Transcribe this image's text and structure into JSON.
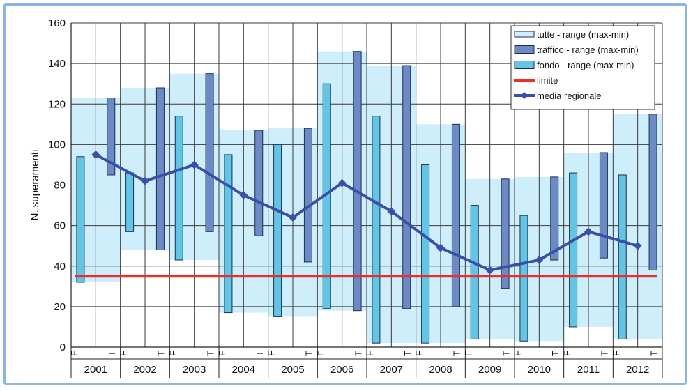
{
  "chart_data": {
    "type": "bar",
    "ylabel": "N. superamenti",
    "ylim": [
      0,
      160
    ],
    "yticks": [
      0,
      20,
      40,
      60,
      80,
      100,
      120,
      140,
      160
    ],
    "grid": true,
    "legend_position": "top-right",
    "categories": [
      "2001",
      "2002",
      "2003",
      "2004",
      "2005",
      "2006",
      "2007",
      "2008",
      "2009",
      "2010",
      "2011",
      "2012"
    ],
    "sublabels": [
      "F",
      "T"
    ],
    "series": [
      {
        "name": "tutte - range (max-min)",
        "color": "#cfeefb",
        "min": [
          32,
          48,
          43,
          17,
          15,
          18,
          2,
          2,
          4,
          3,
          10,
          4
        ],
        "max": [
          123,
          128,
          135,
          107,
          108,
          146,
          139,
          110,
          83,
          84,
          96,
          115
        ]
      },
      {
        "name": "traffico - range (max-min)",
        "color": "#6c8ac4",
        "min": [
          85,
          48,
          57,
          55,
          42,
          18,
          19,
          20,
          29,
          43,
          44,
          38
        ],
        "max": [
          123,
          128,
          135,
          107,
          108,
          146,
          139,
          110,
          83,
          84,
          96,
          115
        ]
      },
      {
        "name": "fondo - range (max-min)",
        "color": "#62c5e3",
        "min": [
          32,
          57,
          43,
          17,
          15,
          19,
          2,
          2,
          4,
          3,
          10,
          4
        ],
        "max": [
          94,
          86,
          114,
          95,
          100,
          130,
          114,
          90,
          70,
          65,
          86,
          85
        ]
      },
      {
        "name": "limite",
        "color": "#e8302a",
        "value": 35
      },
      {
        "name": "media regionale",
        "color": "#3a4fa8",
        "values": [
          95,
          82,
          90,
          75,
          64,
          81,
          67,
          49,
          38,
          43,
          57,
          50
        ]
      }
    ]
  }
}
